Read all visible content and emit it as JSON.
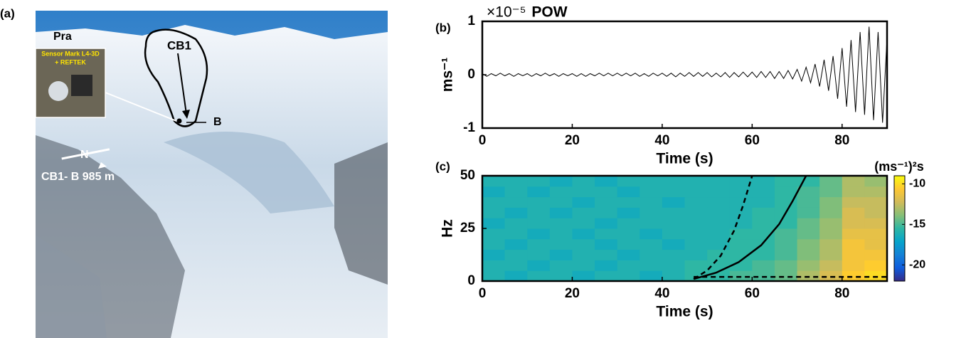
{
  "photo": {
    "panel_label": "(a)",
    "site": "Pra",
    "release": "CB1",
    "sensor_point": "B",
    "north": "N",
    "distance": "CB1- B 985 m",
    "inset_line1": "Sensor Mark L4-3D",
    "inset_line2": "+ REFTEK"
  },
  "chart_data": [
    {
      "type": "line",
      "panel_label": "(b)",
      "title": "POW",
      "multiplier": "×10⁻⁵",
      "ylabel": "ms⁻¹",
      "xlabel": "Time (s)",
      "color": "#000000",
      "xlim": [
        0,
        90
      ],
      "xticks": [
        0,
        20,
        40,
        60,
        80
      ],
      "ylim": [
        -1,
        1
      ],
      "yticks": [
        -1,
        0,
        1
      ],
      "x": [
        0,
        1,
        2,
        3,
        4,
        5,
        6,
        7,
        8,
        9,
        10,
        11,
        12,
        13,
        14,
        15,
        16,
        17,
        18,
        19,
        20,
        21,
        22,
        23,
        24,
        25,
        26,
        27,
        28,
        29,
        30,
        31,
        32,
        33,
        34,
        35,
        36,
        37,
        38,
        39,
        40,
        41,
        42,
        43,
        44,
        45,
        46,
        47,
        48,
        49,
        50,
        51,
        52,
        53,
        54,
        55,
        56,
        57,
        58,
        59,
        60,
        61,
        62,
        63,
        64,
        65,
        66,
        67,
        68,
        69,
        70,
        71,
        72,
        73,
        74,
        75,
        76,
        77,
        78,
        79,
        80,
        81,
        82,
        83,
        84,
        85,
        86,
        87,
        88,
        89,
        90
      ],
      "values": [
        0.02,
        -0.03,
        0.02,
        -0.02,
        0.03,
        -0.02,
        0.02,
        -0.03,
        0.02,
        -0.02,
        0.02,
        -0.03,
        0.02,
        -0.02,
        0.03,
        -0.02,
        0.02,
        -0.03,
        0.02,
        -0.02,
        0.02,
        -0.03,
        0.02,
        -0.03,
        0.02,
        -0.02,
        0.03,
        -0.02,
        0.03,
        -0.02,
        0.03,
        -0.02,
        0.03,
        -0.02,
        0.03,
        -0.03,
        0.02,
        -0.03,
        0.03,
        -0.02,
        0.03,
        -0.03,
        0.03,
        -0.04,
        0.03,
        -0.03,
        0.04,
        -0.03,
        0.04,
        -0.03,
        0.04,
        -0.04,
        0.03,
        -0.04,
        0.04,
        -0.05,
        0.04,
        -0.04,
        0.05,
        -0.04,
        0.05,
        -0.05,
        0.06,
        -0.05,
        0.06,
        -0.07,
        0.06,
        -0.07,
        0.08,
        -0.08,
        0.1,
        -0.12,
        0.14,
        -0.15,
        0.2,
        -0.22,
        0.28,
        -0.3,
        0.35,
        -0.45,
        0.5,
        -0.6,
        0.65,
        -0.7,
        0.8,
        -0.75,
        0.9,
        -0.85,
        0.8,
        -0.9,
        0.7
      ]
    },
    {
      "type": "heatmap",
      "panel_label": "(c)",
      "ylabel": "Hz",
      "xlabel": "Time (s)",
      "colorbar_label": "(ms⁻¹)²s",
      "xlim": [
        0,
        90
      ],
      "xticks": [
        0,
        20,
        40,
        60,
        80
      ],
      "ylim": [
        0,
        50
      ],
      "yticks": [
        0,
        25,
        50
      ],
      "clim": [
        -22,
        -9
      ],
      "cticks": [
        -10,
        -15,
        -20
      ],
      "colormap": [
        "#352a87",
        "#0f5cdd",
        "#1481d6",
        "#06a4ca",
        "#2eb7a4",
        "#87bf77",
        "#d1bb59",
        "#fec832",
        "#f9fb0e"
      ],
      "xbins": [
        0,
        5,
        10,
        15,
        20,
        25,
        30,
        35,
        40,
        45,
        50,
        55,
        60,
        65,
        70,
        75,
        80,
        85,
        90
      ],
      "ybins": [
        0,
        5,
        10,
        15,
        20,
        25,
        30,
        35,
        40,
        45,
        50
      ],
      "values": [
        [
          -16,
          -16.5,
          -16,
          -16,
          -16.5,
          -16,
          -16,
          -16.5,
          -16,
          -15.5,
          -15.5,
          -15,
          -15,
          -14.5,
          -13,
          -12,
          -10.5,
          -10
        ],
        [
          -16,
          -16,
          -16.5,
          -16,
          -16,
          -16.5,
          -16,
          -16,
          -16,
          -15.5,
          -15.5,
          -15.5,
          -15,
          -14.5,
          -13.5,
          -12.5,
          -11,
          -10.5
        ],
        [
          -16.5,
          -16,
          -16,
          -16.5,
          -16,
          -16,
          -16.5,
          -16,
          -16,
          -16,
          -15.5,
          -15.5,
          -15.5,
          -15,
          -14,
          -13,
          -11,
          -11
        ],
        [
          -16,
          -16.5,
          -16,
          -16,
          -16,
          -16.5,
          -16,
          -16,
          -16.5,
          -16,
          -16,
          -15.5,
          -15.5,
          -15,
          -14,
          -13,
          -11,
          -11.5
        ],
        [
          -16,
          -16,
          -16.5,
          -16,
          -16.5,
          -16,
          -16,
          -16.5,
          -16,
          -16,
          -16,
          -15.5,
          -15.5,
          -15,
          -14.5,
          -13.5,
          -11.5,
          -11.5
        ],
        [
          -16.5,
          -16,
          -16,
          -16,
          -16,
          -16.5,
          -16,
          -16,
          -16,
          -16,
          -16,
          -16,
          -15.5,
          -15.5,
          -14.5,
          -13.5,
          -12,
          -12
        ],
        [
          -16,
          -16.5,
          -16,
          -16.5,
          -16,
          -16,
          -16.5,
          -16,
          -16,
          -16,
          -16,
          -16,
          -15.5,
          -15.5,
          -15,
          -14,
          -12,
          -12.5
        ],
        [
          -16,
          -16,
          -16,
          -16,
          -16.5,
          -16,
          -16,
          -16,
          -16.5,
          -16,
          -16,
          -16,
          -16,
          -15.5,
          -15,
          -14,
          -12.5,
          -12.5
        ],
        [
          -16.5,
          -16,
          -16.5,
          -16,
          -16,
          -16,
          -16.5,
          -16,
          -16,
          -16,
          -16,
          -16,
          -16,
          -15.5,
          -15,
          -14.5,
          -13,
          -13
        ],
        [
          -16,
          -16,
          -16,
          -16.5,
          -16,
          -16.5,
          -16,
          -16,
          -16,
          -16,
          -16,
          -16,
          -16,
          -15.5,
          -15.5,
          -14.5,
          -13,
          -13.5
        ]
      ],
      "curves": [
        {
          "style": "dashed",
          "x": [
            47,
            50,
            53,
            56,
            58,
            60
          ],
          "y": [
            1,
            5,
            12,
            24,
            36,
            50
          ]
        },
        {
          "style": "solid",
          "x": [
            47,
            52,
            57,
            62,
            66,
            69,
            72
          ],
          "y": [
            1,
            4,
            9,
            17,
            27,
            38,
            50
          ]
        },
        {
          "style": "dashed",
          "x": [
            47,
            90
          ],
          "y": [
            2,
            2
          ]
        }
      ]
    }
  ]
}
